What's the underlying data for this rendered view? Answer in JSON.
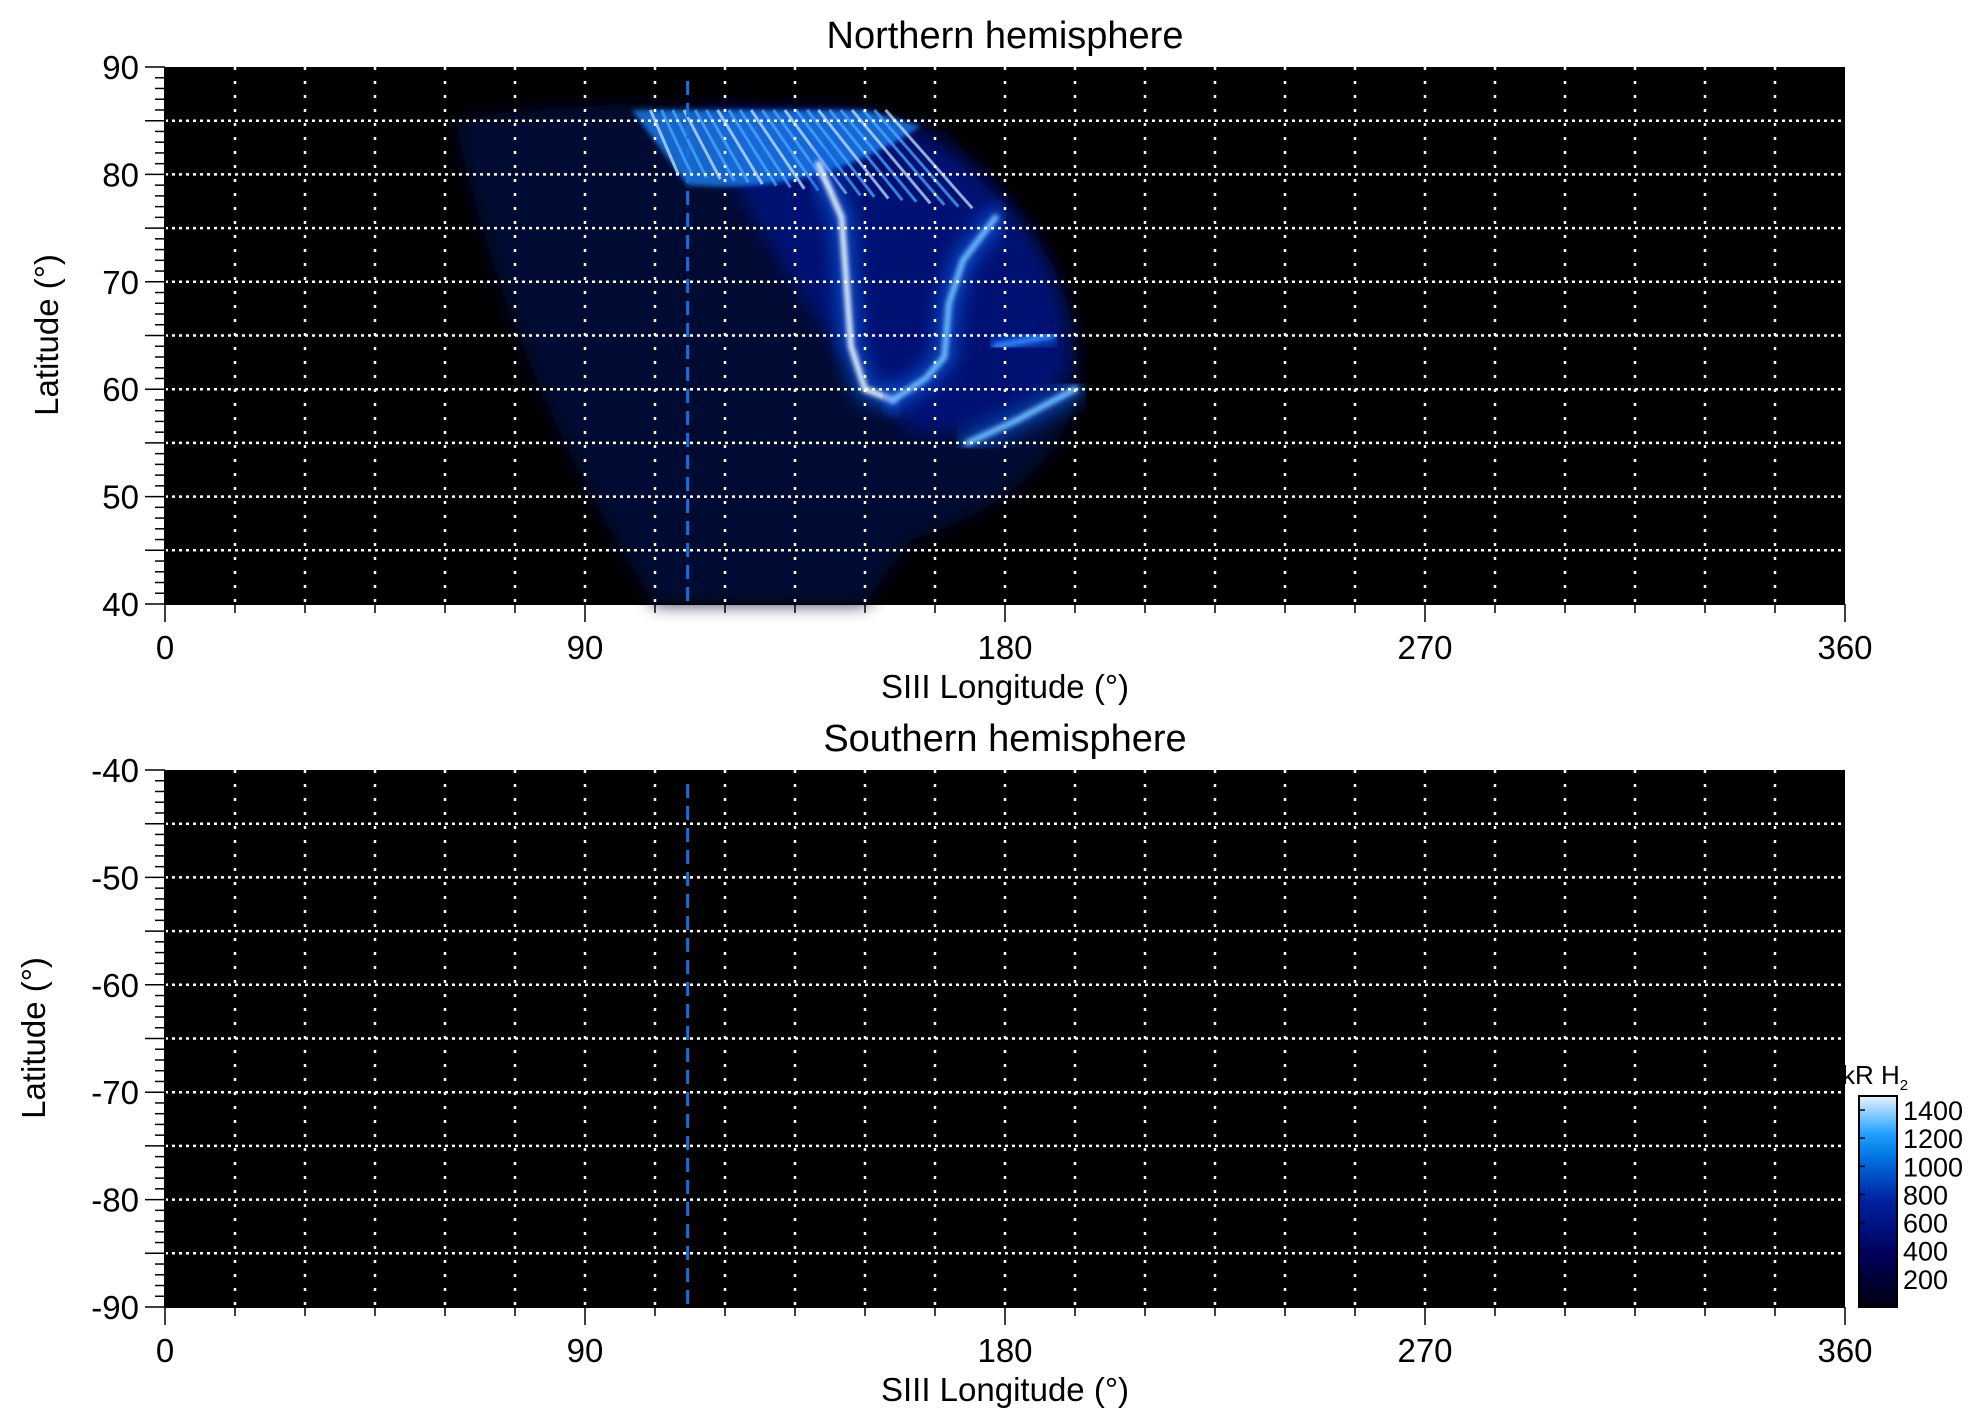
{
  "chart_data": [
    {
      "type": "heatmap",
      "title": "Northern hemisphere",
      "xlabel": "SIII Longitude (°)",
      "ylabel": "Latitude (°)",
      "xlim": [
        0,
        360
      ],
      "ylim": [
        40,
        90
      ],
      "xticks": [
        "0",
        "90",
        "180",
        "270",
        "360"
      ],
      "yticks": [
        "40",
        "50",
        "60",
        "70",
        "80",
        "90"
      ],
      "grid": true,
      "reference_longitude": 112,
      "emission_region": {
        "lon": [
          60,
          196
        ],
        "lat": [
          40,
          87
        ]
      },
      "emission_features": [
        {
          "name": "polar fan",
          "lon": [
            100,
            150
          ],
          "lat": [
            79,
            86
          ],
          "intensity_kR": 900
        },
        {
          "name": "main oval west arc",
          "path": [
            [
              140,
              81
            ],
            [
              145,
              76
            ],
            [
              146,
              70
            ],
            [
              147,
              64
            ],
            [
              150,
              60
            ],
            [
              156,
              59
            ]
          ],
          "intensity_kR": 1400
        },
        {
          "name": "main oval east arc",
          "path": [
            [
              156,
              59
            ],
            [
              163,
              61
            ],
            [
              167,
              63
            ],
            [
              168,
              68
            ],
            [
              171,
              72
            ],
            [
              178,
              76
            ]
          ],
          "intensity_kR": 1100
        },
        {
          "name": "equatorward arc",
          "path": [
            [
              172,
              55
            ],
            [
              182,
              57
            ],
            [
              195,
              60
            ]
          ],
          "intensity_kR": 1100
        },
        {
          "name": "outer arc",
          "path": [
            [
              178,
              64
            ],
            [
              190,
              65
            ]
          ],
          "intensity_kR": 700
        }
      ]
    },
    {
      "type": "heatmap",
      "title": "Southern hemisphere",
      "xlabel": "SIII Longitude (°)",
      "ylabel": "Latitude (°)",
      "xlim": [
        0,
        360
      ],
      "ylim": [
        -90,
        -40
      ],
      "xticks": [
        "0",
        "90",
        "180",
        "270",
        "360"
      ],
      "yticks": [
        "-40",
        "-50",
        "-60",
        "-70",
        "-80",
        "-90"
      ],
      "grid": true,
      "reference_longitude": 112,
      "emission_features": []
    }
  ],
  "colorbar": {
    "label": "kR H",
    "label_subscript": "2",
    "ticks": [
      "200",
      "400",
      "600",
      "800",
      "1000",
      "1200",
      "1400"
    ],
    "range": [
      0,
      1500
    ],
    "colors": [
      "#000010",
      "#00005a",
      "#0020a0",
      "#0070e0",
      "#20a0ff",
      "#e0f0ff"
    ]
  },
  "colors": {
    "background": "#000000",
    "grid": "#ffffff",
    "reference_line": "#1a6fe0"
  }
}
